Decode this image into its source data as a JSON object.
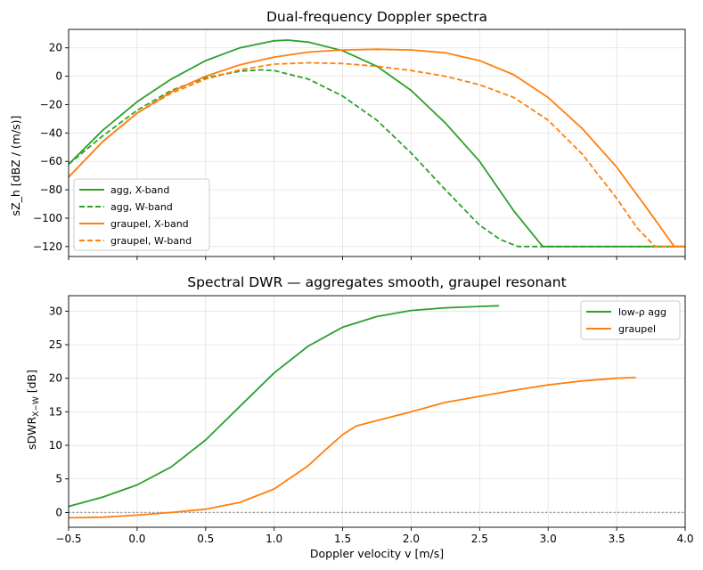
{
  "chart_data": [
    {
      "type": "line",
      "title": "Dual-frequency Doppler spectra",
      "xlabel": "",
      "ylabel": "sZ_h [dBZ / (m/s)]",
      "xlim": [
        -0.5,
        4.0
      ],
      "ylim": [
        -127,
        33
      ],
      "xticks": [
        -0.5,
        0.0,
        0.5,
        1.0,
        1.5,
        2.0,
        2.5,
        3.0,
        3.5,
        4.0
      ],
      "yticks": [
        -120,
        -100,
        -80,
        -60,
        -40,
        -20,
        0,
        20
      ],
      "ytick_labels": [
        "−120",
        "−100",
        "−80",
        "−60",
        "−40",
        "−20",
        "0",
        "20"
      ],
      "grid": true,
      "legend_position": "lower-left",
      "series": [
        {
          "name": "agg, X-band",
          "color": "#2ca02c",
          "dash": "solid",
          "x": [
            -0.5,
            -0.25,
            0.0,
            0.25,
            0.5,
            0.75,
            1.0,
            1.1,
            1.25,
            1.5,
            1.75,
            2.0,
            2.25,
            2.5,
            2.75,
            2.96,
            3.5,
            4.0
          ],
          "y": [
            -62,
            -38,
            -18,
            -2,
            11,
            20,
            25,
            25.5,
            24,
            18,
            7,
            -10,
            -33,
            -60,
            -95,
            -120,
            -120,
            -120
          ]
        },
        {
          "name": "agg, W-band",
          "color": "#2ca02c",
          "dash": "dashed",
          "x": [
            -0.5,
            -0.25,
            0.0,
            0.25,
            0.5,
            0.75,
            0.9,
            1.0,
            1.25,
            1.5,
            1.75,
            2.0,
            2.25,
            2.5,
            2.65,
            2.78,
            3.0,
            3.5,
            4.0
          ],
          "y": [
            -62,
            -42,
            -24,
            -10,
            -1,
            3.5,
            4.5,
            4,
            -2,
            -14,
            -31,
            -54,
            -80,
            -105,
            -115,
            -120,
            -120,
            -120,
            -120
          ]
        },
        {
          "name": "graupel, X-band",
          "color": "#ff7f0e",
          "dash": "solid",
          "x": [
            -0.5,
            -0.25,
            0.0,
            0.25,
            0.5,
            0.75,
            1.0,
            1.25,
            1.5,
            1.75,
            2.0,
            2.25,
            2.5,
            2.75,
            3.0,
            3.25,
            3.5,
            3.75,
            3.92,
            4.0
          ],
          "y": [
            -71,
            -46,
            -26,
            -11,
            0,
            8,
            13.5,
            17,
            18.5,
            19,
            18.5,
            16.5,
            11,
            1,
            -15,
            -37,
            -64,
            -97,
            -120,
            -120
          ]
        },
        {
          "name": "graupel, W-band",
          "color": "#ff7f0e",
          "dash": "dashed",
          "x": [
            -0.5,
            -0.25,
            0.0,
            0.25,
            0.5,
            0.75,
            1.0,
            1.25,
            1.5,
            1.75,
            2.0,
            2.25,
            2.5,
            2.75,
            3.0,
            3.25,
            3.5,
            3.65,
            3.78,
            4.0
          ],
          "y": [
            -71,
            -46,
            -26,
            -12,
            -2,
            4.5,
            8.5,
            9.5,
            9,
            7,
            4,
            0,
            -6,
            -15,
            -31,
            -55,
            -86,
            -107,
            -120,
            -120
          ]
        }
      ]
    },
    {
      "type": "line",
      "title": "Spectral DWR — aggregates smooth, graupel resonant",
      "xlabel": "Doppler velocity v [m/s]",
      "ylabel": "sDWR",
      "ylabel_subscript": "X−W",
      "ylabel_suffix": " [dB]",
      "xlim": [
        -0.5,
        4.0
      ],
      "ylim": [
        -2.2,
        32.3
      ],
      "xticks": [
        -0.5,
        0.0,
        0.5,
        1.0,
        1.5,
        2.0,
        2.5,
        3.0,
        3.5,
        4.0
      ],
      "xtick_labels": [
        "−0.5",
        "0.0",
        "0.5",
        "1.0",
        "1.5",
        "2.0",
        "2.5",
        "3.0",
        "3.5",
        "4.0"
      ],
      "yticks": [
        0,
        5,
        10,
        15,
        20,
        25,
        30
      ],
      "grid": true,
      "legend_position": "top-right",
      "reference_line": {
        "y": 0,
        "style": "dotted",
        "color": "#808080"
      },
      "series": [
        {
          "name": "low-ρ agg",
          "color": "#2ca02c",
          "dash": "solid",
          "x": [
            -0.5,
            -0.25,
            0.0,
            0.25,
            0.5,
            0.75,
            1.0,
            1.25,
            1.5,
            1.75,
            2.0,
            2.25,
            2.5,
            2.64
          ],
          "y": [
            0.9,
            2.3,
            4.1,
            6.8,
            10.8,
            15.8,
            20.8,
            24.8,
            27.6,
            29.2,
            30.1,
            30.5,
            30.7,
            30.8
          ]
        },
        {
          "name": "graupel",
          "color": "#ff7f0e",
          "dash": "solid",
          "x": [
            -0.5,
            -0.25,
            0.0,
            0.25,
            0.5,
            0.75,
            1.0,
            1.25,
            1.4,
            1.5,
            1.6,
            1.75,
            2.0,
            2.25,
            2.5,
            2.75,
            3.0,
            3.25,
            3.5,
            3.64
          ],
          "y": [
            -0.8,
            -0.7,
            -0.4,
            0.0,
            0.5,
            1.5,
            3.5,
            7.0,
            9.8,
            11.6,
            12.9,
            13.7,
            15.0,
            16.4,
            17.3,
            18.2,
            19.0,
            19.6,
            20.0,
            20.1
          ]
        }
      ]
    }
  ]
}
